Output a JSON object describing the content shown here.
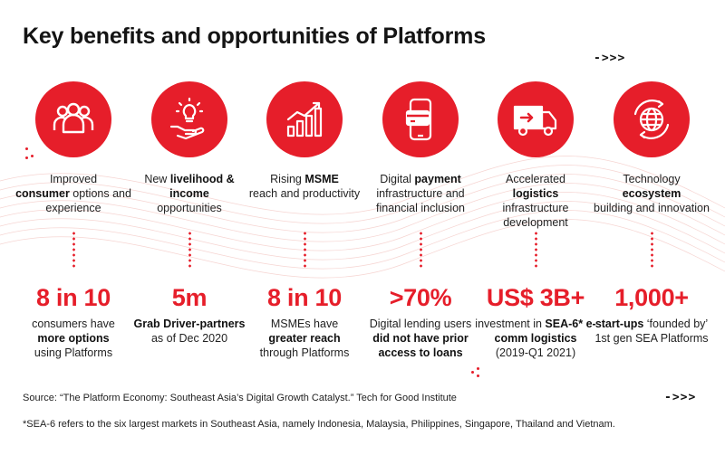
{
  "title": "Key benefits and opportunities of Platforms",
  "arrow_glyph": "->>>",
  "colors": {
    "accent": "#e61e2a",
    "text": "#1a1a1a",
    "background": "#ffffff"
  },
  "columns": [
    {
      "icon": "people-icon",
      "benefit": [
        {
          "text": "Improved",
          "bold": false
        },
        {
          "text": "consumer",
          "bold": true
        },
        {
          "text": " options and experience",
          "bold": false
        }
      ],
      "stat": "8 in 10",
      "stat_desc": [
        {
          "text": "consumers have ",
          "bold": false
        },
        {
          "text": "more options",
          "bold": true
        },
        {
          "text": " using Platforms",
          "bold": false
        }
      ]
    },
    {
      "icon": "hand-lightbulb-icon",
      "benefit": [
        {
          "text": "New ",
          "bold": false
        },
        {
          "text": "livelihood & income",
          "bold": true
        },
        {
          "text": " opportunities",
          "bold": false
        }
      ],
      "stat": "5m",
      "stat_desc": [
        {
          "text": "Grab Driver-partners",
          "bold": true
        },
        {
          "text": " as of Dec 2020",
          "bold": false
        }
      ]
    },
    {
      "icon": "growth-chart-icon",
      "benefit": [
        {
          "text": "Rising ",
          "bold": false
        },
        {
          "text": "MSME",
          "bold": true
        },
        {
          "text": " reach and productivity",
          "bold": false
        }
      ],
      "stat": "8 in 10",
      "stat_desc": [
        {
          "text": "MSMEs have ",
          "bold": false
        },
        {
          "text": "greater reach",
          "bold": true
        },
        {
          "text": " through Platforms",
          "bold": false
        }
      ]
    },
    {
      "icon": "phone-card-icon",
      "benefit": [
        {
          "text": "Digital ",
          "bold": false
        },
        {
          "text": "payment",
          "bold": true
        },
        {
          "text": " infrastructure and financial inclusion",
          "bold": false
        }
      ],
      "stat": ">70%",
      "stat_desc": [
        {
          "text": "Digital lending users ",
          "bold": false
        },
        {
          "text": "did not have prior access to loans",
          "bold": true
        }
      ]
    },
    {
      "icon": "delivery-truck-icon",
      "benefit": [
        {
          "text": "Accelerated ",
          "bold": false
        },
        {
          "text": "logistics",
          "bold": true
        },
        {
          "text": " infrastructure development",
          "bold": false
        }
      ],
      "stat": "US$ 3B+",
      "stat_desc": [
        {
          "text": "investment in ",
          "bold": false
        },
        {
          "text": "SEA-6* e-comm logistics",
          "bold": true
        },
        {
          "text": " (2019-Q1 2021)",
          "bold": false
        }
      ]
    },
    {
      "icon": "globe-cycle-icon",
      "benefit": [
        {
          "text": "Technology ",
          "bold": false
        },
        {
          "text": "ecosystem",
          "bold": true
        },
        {
          "text": " building and innovation",
          "bold": false
        }
      ],
      "stat": "1,000+",
      "stat_desc": [
        {
          "text": "start-ups",
          "bold": true
        },
        {
          "text": " ‘founded by’ 1st gen SEA Platforms",
          "bold": false
        }
      ]
    }
  ],
  "source": "Source: “The Platform Economy: Southeast Asia’s Digital Growth Catalyst.” Tech for Good Institute",
  "footnote": "*SEA-6 refers to the six largest markets in Southeast Asia, namely Indonesia, Malaysia, Philippines, Singapore, Thailand and Vietnam."
}
